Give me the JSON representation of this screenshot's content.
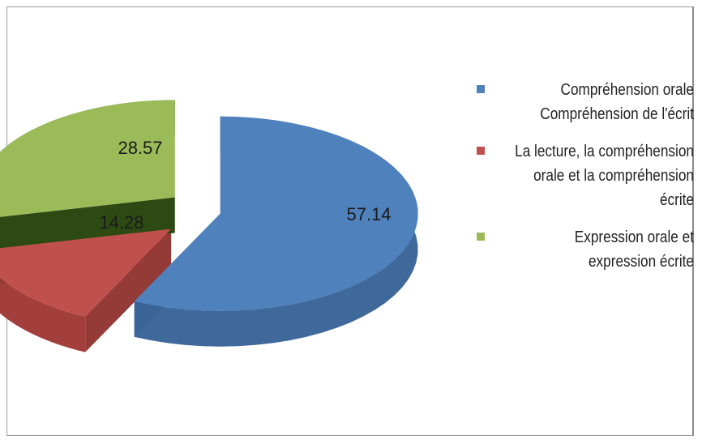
{
  "chart_data": {
    "type": "pie",
    "title": "",
    "slices": [
      {
        "label": "Compréhension orale Compréhension de l'écrit",
        "value": 57.14,
        "value_label": "57.14",
        "color": "#4f81bd"
      },
      {
        "label": "La lecture, la compréhension orale et la compréhension écrite",
        "value": 14.28,
        "value_label": "14.28",
        "color": "#c0504d"
      },
      {
        "label": "Expression orale et expression écrite",
        "value": 28.57,
        "value_label": "28.57",
        "color": "#9bbb59"
      }
    ],
    "style": "3d-exploded",
    "legend_position": "right"
  },
  "legend": {
    "items": [
      {
        "text": "Compréhension orale Compréhension de l'écrit",
        "color": "#4f81bd"
      },
      {
        "text": "La lecture, la compréhension orale et la compréhension écrite",
        "color": "#c0504d"
      },
      {
        "text": "Expression orale et expression écrite",
        "color": "#9bbb59"
      }
    ]
  }
}
